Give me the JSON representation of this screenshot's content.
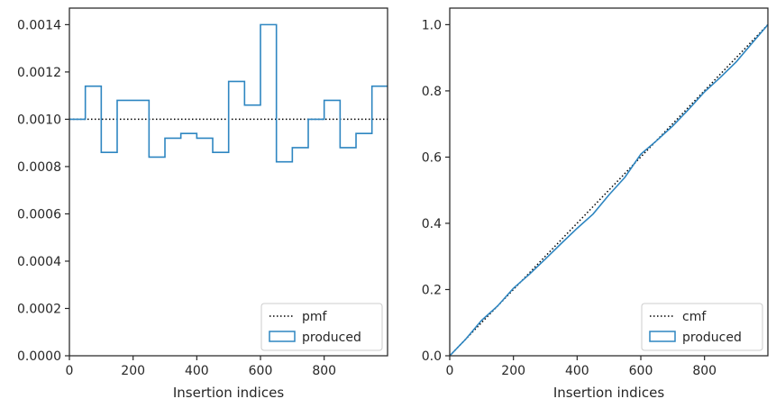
{
  "chart_data": [
    {
      "type": "line",
      "xlabel": "Insertion indices",
      "ylabel": "",
      "xlim": [
        0,
        999
      ],
      "ylim": [
        0,
        0.00147
      ],
      "x_ticks": [
        0,
        200,
        400,
        600,
        800
      ],
      "x_tick_labels": [
        "0",
        "200",
        "400",
        "600",
        "800"
      ],
      "y_ticks": [
        0,
        0.0002,
        0.0004,
        0.0006,
        0.0008,
        0.001,
        0.0012,
        0.0014
      ],
      "y_tick_labels": [
        "0.0000",
        "0.0002",
        "0.0004",
        "0.0006",
        "0.0008",
        "0.0010",
        "0.0012",
        "0.0014"
      ],
      "grid": false,
      "legend_position": "lower-right",
      "series": [
        {
          "name": "pmf",
          "style": "dotted",
          "color": "#000000",
          "x": [
            0,
            999
          ],
          "y": [
            0.001,
            0.001
          ]
        },
        {
          "name": "produced",
          "style": "step",
          "color": "#2e86c1",
          "bin_edges": [
            0,
            50,
            100,
            150,
            200,
            250,
            300,
            350,
            400,
            450,
            500,
            550,
            600,
            650,
            700,
            750,
            800,
            850,
            900,
            950,
            1000
          ],
          "values": [
            0.001,
            0.00114,
            0.00086,
            0.00108,
            0.00108,
            0.00084,
            0.00092,
            0.00094,
            0.00092,
            0.00086,
            0.00116,
            0.00106,
            0.0014,
            0.00082,
            0.00088,
            0.001,
            0.00108,
            0.00088,
            0.00094,
            0.00114
          ]
        }
      ]
    },
    {
      "type": "line",
      "xlabel": "Insertion indices",
      "ylabel": "",
      "xlim": [
        0,
        999
      ],
      "ylim": [
        0,
        1.05
      ],
      "x_ticks": [
        0,
        200,
        400,
        600,
        800
      ],
      "x_tick_labels": [
        "0",
        "200",
        "400",
        "600",
        "800"
      ],
      "y_ticks": [
        0,
        0.2,
        0.4,
        0.6,
        0.8,
        1.0
      ],
      "y_tick_labels": [
        "0.0",
        "0.2",
        "0.4",
        "0.6",
        "0.8",
        "1.0"
      ],
      "grid": false,
      "legend_position": "lower-right",
      "series": [
        {
          "name": "cmf",
          "style": "dotted",
          "color": "#000000",
          "x": [
            0,
            999
          ],
          "y": [
            0,
            1.0
          ]
        },
        {
          "name": "produced",
          "style": "line",
          "color": "#2e86c1",
          "x": [
            0,
            50,
            100,
            150,
            200,
            250,
            300,
            350,
            400,
            450,
            500,
            550,
            600,
            650,
            700,
            750,
            800,
            850,
            900,
            950,
            999
          ],
          "y": [
            0.0,
            0.05,
            0.107,
            0.15,
            0.204,
            0.246,
            0.292,
            0.339,
            0.385,
            0.428,
            0.486,
            0.539,
            0.609,
            0.65,
            0.694,
            0.744,
            0.797,
            0.841,
            0.888,
            0.945,
            1.0
          ]
        }
      ]
    }
  ]
}
